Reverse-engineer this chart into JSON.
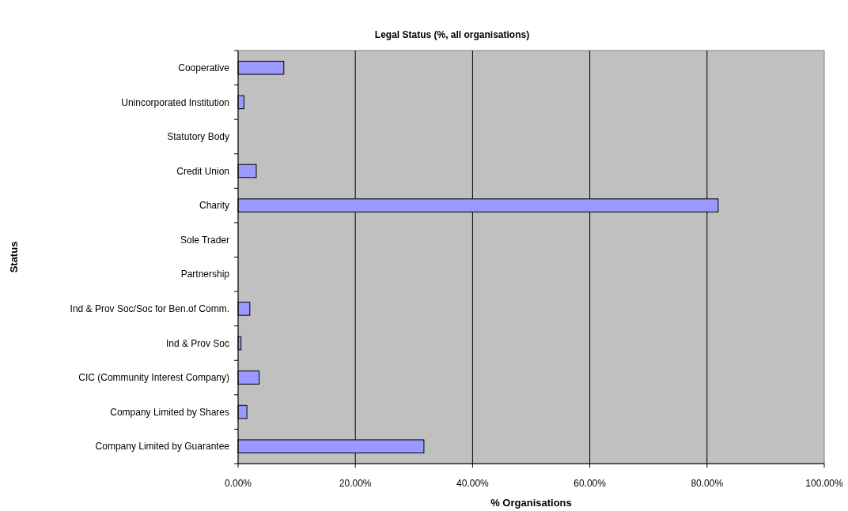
{
  "chart_data": {
    "type": "bar",
    "orientation": "horizontal",
    "title": "Legal Status (%, all organisations)",
    "xlabel": "% Organisations",
    "ylabel": "Status",
    "categories": [
      "Cooperative",
      "Unincorporated Institution",
      "Statutory Body",
      "Credit Union",
      "Charity",
      "Sole Trader",
      "Partnership",
      "Ind & Prov Soc/Soc for Ben.of Comm.",
      "Ind & Prov Soc",
      "CIC (Community Interest Company)",
      "Company Limited by Shares",
      "Company Limited by Guarantee"
    ],
    "values": [
      7.8,
      1.0,
      0,
      3.1,
      81.9,
      0,
      0,
      2.0,
      0.5,
      3.6,
      1.5,
      31.7
    ],
    "color": "#9999ff",
    "xlim": [
      0,
      100
    ],
    "xticks": [
      {
        "value": 0,
        "label": "0.00%"
      },
      {
        "value": 20,
        "label": "20.00%"
      },
      {
        "value": 40,
        "label": "40.00%"
      },
      {
        "value": 60,
        "label": "60.00%"
      },
      {
        "value": 80,
        "label": "80.00%"
      },
      {
        "value": 100,
        "label": "100.00%"
      }
    ],
    "grid": "x"
  }
}
